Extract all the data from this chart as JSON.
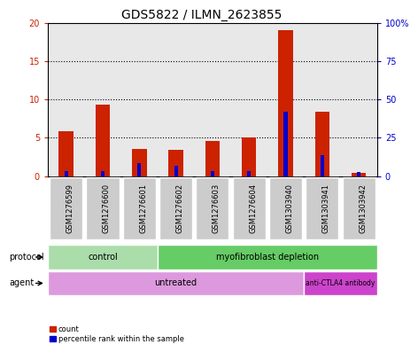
{
  "title": "GDS5822 / ILMN_2623855",
  "samples": [
    "GSM1276599",
    "GSM1276600",
    "GSM1276601",
    "GSM1276602",
    "GSM1276603",
    "GSM1276604",
    "GSM1303940",
    "GSM1303941",
    "GSM1303942"
  ],
  "count_values": [
    5.8,
    9.3,
    3.5,
    3.4,
    4.6,
    5.1,
    19.0,
    8.4,
    0.4
  ],
  "percentile_values": [
    3.0,
    3.0,
    8.5,
    6.5,
    3.5,
    3.0,
    42.0,
    13.5,
    2.5
  ],
  "left_ylim": [
    0,
    20
  ],
  "right_ylim": [
    0,
    100
  ],
  "left_yticks": [
    0,
    5,
    10,
    15,
    20
  ],
  "right_yticks": [
    0,
    25,
    50,
    75,
    100
  ],
  "left_yticklabels": [
    "0",
    "5",
    "10",
    "15",
    "20"
  ],
  "right_yticklabels": [
    "0",
    "25",
    "50",
    "75",
    "100%"
  ],
  "bar_color_red": "#cc2200",
  "bar_color_blue": "#0000cc",
  "protocol_control_color": "#aaddaa",
  "protocol_myofib_color": "#66cc66",
  "agent_untreated_color": "#dd99dd",
  "agent_anti_color": "#cc44cc",
  "protocol_label": "protocol",
  "agent_label": "agent",
  "legend_count": "count",
  "legend_percentile": "percentile rank within the sample",
  "title_fontsize": 10,
  "tick_fontsize": 7,
  "label_fontsize": 7,
  "row_fontsize": 7,
  "sample_fontsize": 6,
  "red_bar_width": 0.4,
  "blue_bar_width": 0.1
}
